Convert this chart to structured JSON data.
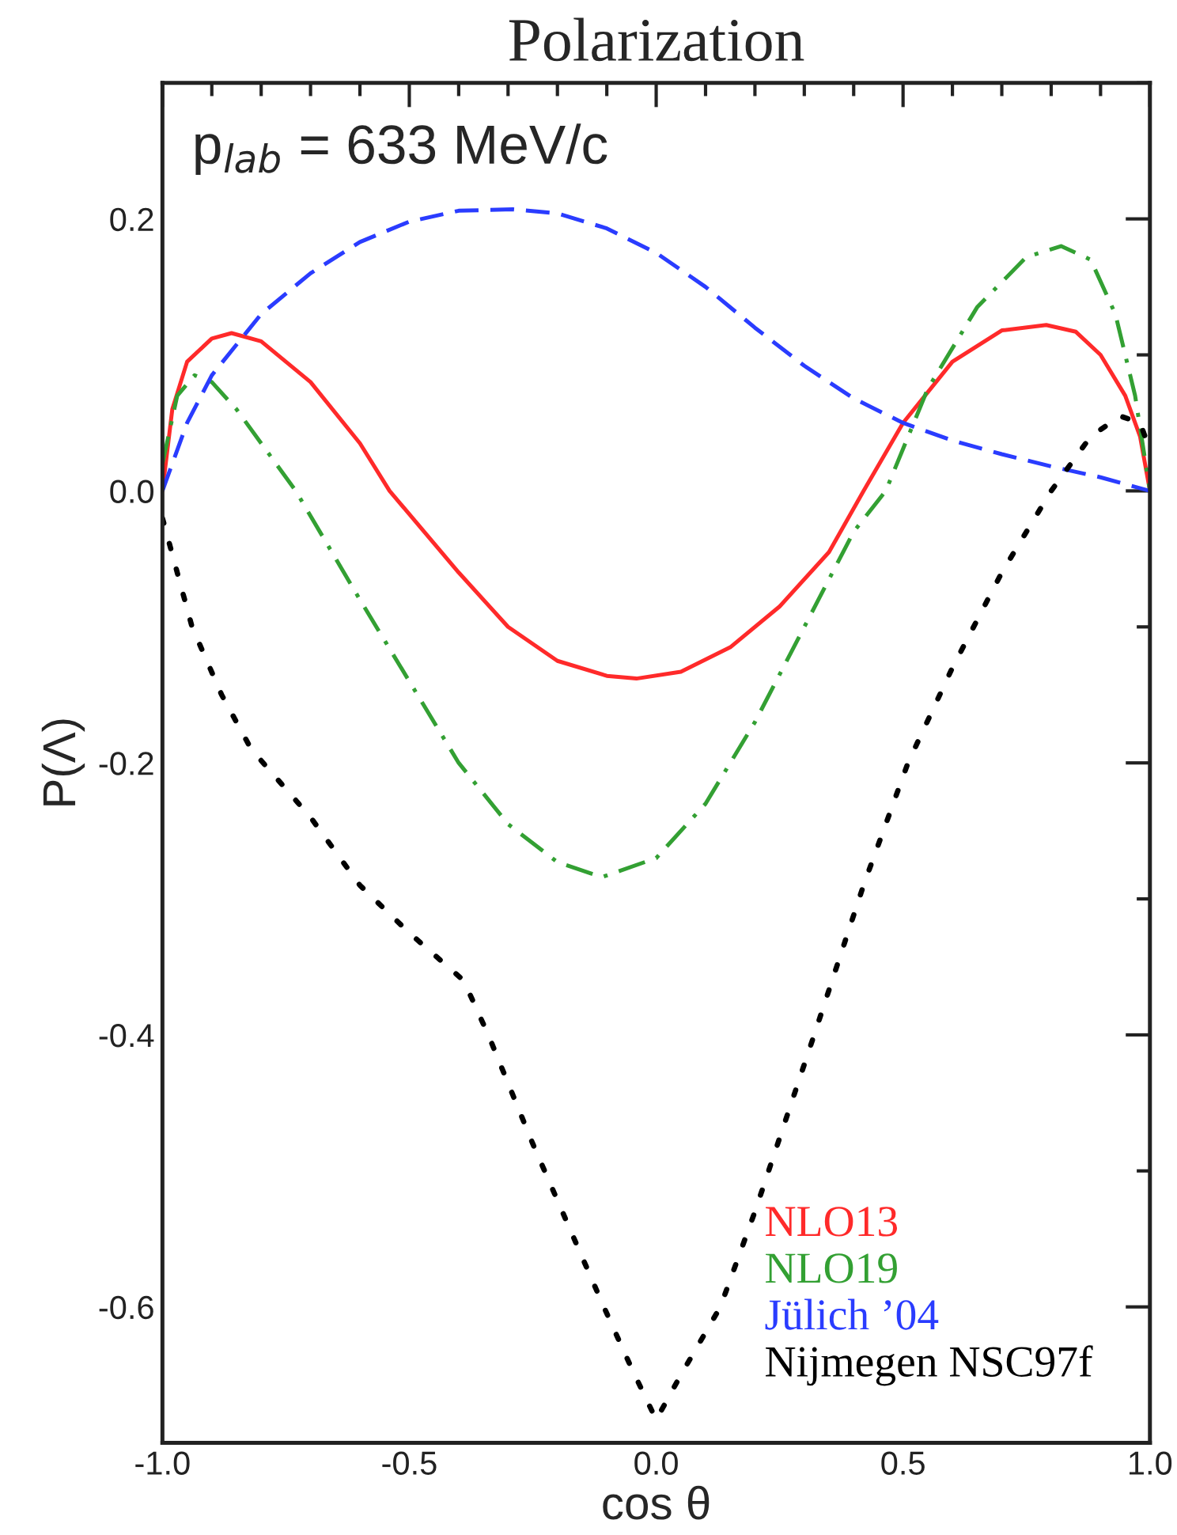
{
  "chart_data": {
    "type": "line",
    "title": "Polarization",
    "xlabel": "cos θ",
    "ylabel": "P(Λ)",
    "annotations": [
      "p$_{lab}$ = 633 MeV/c"
    ],
    "xlim": [
      -1.0,
      1.0
    ],
    "ylim": [
      -0.7,
      0.3
    ],
    "xticks": [
      {
        "value": -1.0,
        "label": "-1.0"
      },
      {
        "value": -0.5,
        "label": "-0.5"
      },
      {
        "value": 0.0,
        "label": "0.0"
      },
      {
        "value": 0.5,
        "label": "0.5"
      },
      {
        "value": 1.0,
        "label": "1.0"
      }
    ],
    "yticks": [
      {
        "value": -0.6,
        "label": "-0.6"
      },
      {
        "value": -0.4,
        "label": "-0.4"
      },
      {
        "value": -0.2,
        "label": "-0.2"
      },
      {
        "value": 0.0,
        "label": "0.0"
      },
      {
        "value": 0.2,
        "label": "0.2"
      }
    ],
    "grid": false,
    "legend": "bottom right",
    "series": [
      {
        "name": "NLO13",
        "color": "#ff2a2a",
        "line_style": "solid",
        "x": [
          -1,
          -0.98,
          -0.95,
          -0.9,
          -0.86,
          -0.8,
          -0.7,
          -0.6,
          -0.54,
          -0.4,
          -0.3,
          -0.2,
          -0.1,
          -0.04,
          0.05,
          0.15,
          0.25,
          0.35,
          0.42,
          0.5,
          0.6,
          0.7,
          0.79,
          0.85,
          0.9,
          0.95,
          0.98,
          1.0
        ],
        "values": [
          0.0,
          0.06,
          0.095,
          0.112,
          0.116,
          0.11,
          0.08,
          0.035,
          0.0,
          -0.06,
          -0.1,
          -0.125,
          -0.136,
          -0.138,
          -0.133,
          -0.115,
          -0.085,
          -0.045,
          0.0,
          0.05,
          0.095,
          0.118,
          0.122,
          0.117,
          0.1,
          0.07,
          0.04,
          0.0
        ]
      },
      {
        "name": "NLO19",
        "color": "#33a033",
        "line_style": "dashdot",
        "x": [
          -1,
          -0.97,
          -0.935,
          -0.9,
          -0.85,
          -0.8,
          -0.73,
          -0.6,
          -0.5,
          -0.4,
          -0.3,
          -0.2,
          -0.11,
          0.0,
          0.1,
          0.2,
          0.3,
          0.4,
          0.465,
          0.55,
          0.65,
          0.75,
          0.82,
          0.88,
          0.93,
          0.97,
          1.0
        ],
        "values": [
          0.02,
          0.07,
          0.085,
          0.08,
          0.06,
          0.035,
          0.0,
          -0.08,
          -0.14,
          -0.2,
          -0.245,
          -0.273,
          -0.284,
          -0.27,
          -0.23,
          -0.17,
          -0.1,
          -0.03,
          0.0,
          0.075,
          0.135,
          0.172,
          0.18,
          0.17,
          0.13,
          0.07,
          0.0
        ]
      },
      {
        "name": "Jülich ’04",
        "color": "#2a3cff",
        "line_style": "dashed",
        "x": [
          -1,
          -0.95,
          -0.9,
          -0.8,
          -0.7,
          -0.6,
          -0.5,
          -0.4,
          -0.29,
          -0.2,
          -0.1,
          0.0,
          0.1,
          0.2,
          0.3,
          0.4,
          0.5,
          0.6,
          0.7,
          0.8,
          0.9,
          1.0
        ],
        "values": [
          0.0,
          0.05,
          0.085,
          0.13,
          0.16,
          0.183,
          0.198,
          0.206,
          0.207,
          0.204,
          0.193,
          0.175,
          0.15,
          0.12,
          0.092,
          0.068,
          0.05,
          0.037,
          0.027,
          0.018,
          0.01,
          0.0
        ]
      },
      {
        "name": "Nijmegen NSC97f",
        "color": "#000000",
        "line_style": "dotted",
        "x": [
          -1,
          -0.97,
          -0.94,
          -0.88,
          -0.82,
          -0.7,
          -0.6,
          -0.5,
          -0.39,
          -0.34,
          -0.25,
          -0.106,
          -0.05,
          0.0,
          0.05,
          0.13,
          0.2,
          0.32,
          0.42,
          0.51,
          0.6,
          0.7,
          0.8,
          0.88,
          0.94,
          0.98,
          1.0
        ],
        "values": [
          -0.02,
          -0.06,
          -0.1,
          -0.15,
          -0.19,
          -0.24,
          -0.29,
          -0.325,
          -0.36,
          -0.4,
          -0.48,
          -0.6,
          -0.645,
          -0.683,
          -0.65,
          -0.6,
          -0.53,
          -0.4,
          -0.29,
          -0.2,
          -0.13,
          -0.06,
          0.0,
          0.04,
          0.055,
          0.05,
          0.03
        ]
      }
    ]
  }
}
